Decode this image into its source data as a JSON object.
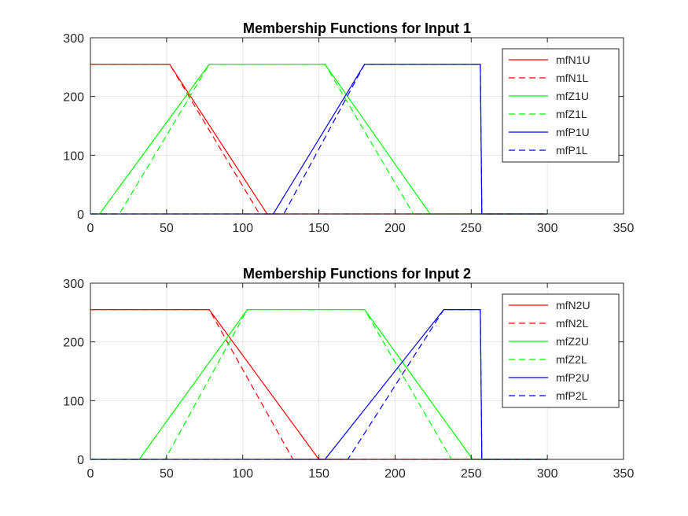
{
  "chart_data": [
    {
      "type": "line",
      "title": "Membership Functions for Input 1",
      "xlabel": "",
      "ylabel": "",
      "xlim": [
        0,
        350
      ],
      "ylim": [
        0,
        300
      ],
      "xticks": [
        0,
        50,
        100,
        150,
        200,
        250,
        300,
        350
      ],
      "yticks": [
        0,
        100,
        200,
        300
      ],
      "grid": true,
      "legend_position": "top-right",
      "series": [
        {
          "name": "mfN1U",
          "color": "#ff0000",
          "style": "solid",
          "x": [
            0,
            52,
            116,
            300
          ],
          "y": [
            255,
            255,
            0,
            0
          ]
        },
        {
          "name": "mfN1L",
          "color": "#ff0000",
          "style": "dashed",
          "x": [
            0,
            52,
            111,
            300
          ],
          "y": [
            255,
            255,
            0,
            0
          ]
        },
        {
          "name": "mfZ1U",
          "color": "#00ff00",
          "style": "solid",
          "x": [
            0,
            6,
            78,
            154,
            223,
            300
          ],
          "y": [
            0,
            0,
            255,
            255,
            0,
            0
          ]
        },
        {
          "name": "mfZ1L",
          "color": "#00ff00",
          "style": "dashed",
          "x": [
            0,
            19,
            78,
            154,
            212,
            300
          ],
          "y": [
            0,
            0,
            255,
            255,
            0,
            0
          ]
        },
        {
          "name": "mfP1U",
          "color": "#0000ff",
          "style": "solid",
          "x": [
            0,
            120,
            180,
            256,
            257,
            300
          ],
          "y": [
            0,
            0,
            255,
            255,
            0,
            0
          ]
        },
        {
          "name": "mfP1L",
          "color": "#0000ff",
          "style": "dashed",
          "x": [
            0,
            127,
            180,
            256,
            257,
            300
          ],
          "y": [
            0,
            0,
            255,
            255,
            0,
            0
          ]
        }
      ]
    },
    {
      "type": "line",
      "title": "Membership Functions for Input 2",
      "xlabel": "",
      "ylabel": "",
      "xlim": [
        0,
        350
      ],
      "ylim": [
        0,
        300
      ],
      "xticks": [
        0,
        50,
        100,
        150,
        200,
        250,
        300,
        350
      ],
      "yticks": [
        0,
        100,
        200,
        300
      ],
      "grid": true,
      "legend_position": "top-right",
      "series": [
        {
          "name": "mfN2U",
          "color": "#ff0000",
          "style": "solid",
          "x": [
            0,
            78,
            150,
            300
          ],
          "y": [
            255,
            255,
            0,
            0
          ]
        },
        {
          "name": "mfN2L",
          "color": "#ff0000",
          "style": "dashed",
          "x": [
            0,
            78,
            133,
            300
          ],
          "y": [
            255,
            255,
            0,
            0
          ]
        },
        {
          "name": "mfZ2U",
          "color": "#00ff00",
          "style": "solid",
          "x": [
            0,
            32,
            103,
            180,
            251,
            300
          ],
          "y": [
            0,
            0,
            255,
            255,
            0,
            0
          ]
        },
        {
          "name": "mfZ2L",
          "color": "#00ff00",
          "style": "dashed",
          "x": [
            0,
            49,
            103,
            180,
            237,
            300
          ],
          "y": [
            0,
            0,
            255,
            255,
            0,
            0
          ]
        },
        {
          "name": "mfP2U",
          "color": "#0000ff",
          "style": "solid",
          "x": [
            0,
            154,
            232,
            256,
            257,
            300
          ],
          "y": [
            0,
            0,
            255,
            255,
            0,
            0
          ]
        },
        {
          "name": "mfP2L",
          "color": "#0000ff",
          "style": "dashed",
          "x": [
            0,
            169,
            232,
            256,
            257,
            300
          ],
          "y": [
            0,
            0,
            255,
            255,
            0,
            0
          ]
        }
      ]
    }
  ]
}
